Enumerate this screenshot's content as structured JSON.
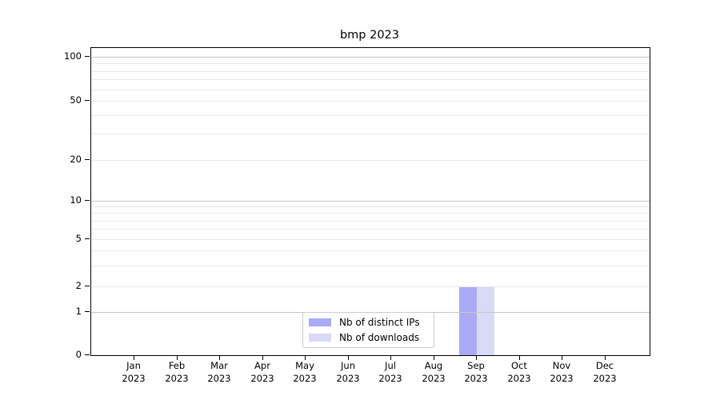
{
  "title": "bmp 2023",
  "axes": {
    "y_tick_labels": [
      "0",
      "1",
      "2",
      "5",
      "10",
      "20",
      "50",
      "100"
    ],
    "x_months": [
      "Jan",
      "Feb",
      "Mar",
      "Apr",
      "May",
      "Jun",
      "Jul",
      "Aug",
      "Sep",
      "Oct",
      "Nov",
      "Dec"
    ],
    "x_year": "2023"
  },
  "legend": {
    "items": [
      {
        "label": "Nb of distinct IPs",
        "color": "#aaaaf5"
      },
      {
        "label": "Nb of downloads",
        "color": "#d9d9f8"
      }
    ]
  },
  "colors": {
    "major_grid": "#c9c9c9",
    "minor_grid": "#ebebeb",
    "spine": "#000000"
  },
  "chart_data": {
    "type": "bar",
    "title": "bmp 2023",
    "categories": [
      "Jan 2023",
      "Feb 2023",
      "Mar 2023",
      "Apr 2023",
      "May 2023",
      "Jun 2023",
      "Jul 2023",
      "Aug 2023",
      "Sep 2023",
      "Oct 2023",
      "Nov 2023",
      "Dec 2023"
    ],
    "series": [
      {
        "name": "Nb of distinct IPs",
        "color": "#aaaaf5",
        "values": [
          0,
          0,
          0,
          0,
          0,
          0,
          0,
          0,
          2,
          0,
          0,
          0
        ]
      },
      {
        "name": "Nb of downloads",
        "color": "#d9d9f8",
        "values": [
          0,
          0,
          0,
          0,
          0,
          0,
          0,
          0,
          2,
          0,
          0,
          0
        ]
      }
    ],
    "yscale": "log-like with 0 baseline (symlog)",
    "yticks": [
      0,
      1,
      2,
      5,
      10,
      20,
      50,
      100
    ],
    "ylim": [
      0,
      115
    ],
    "grid": {
      "major": [
        1,
        10,
        100
      ],
      "minor": [
        2,
        3,
        4,
        5,
        6,
        7,
        8,
        9,
        20,
        30,
        40,
        50,
        60,
        70,
        80,
        90
      ]
    },
    "legend_position": "inside lower-center",
    "xlabel": "",
    "ylabel": ""
  }
}
